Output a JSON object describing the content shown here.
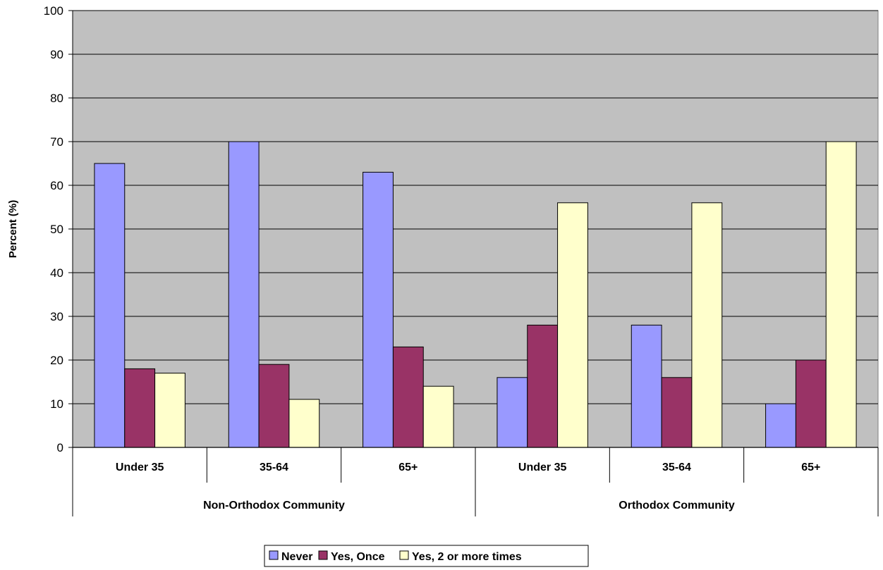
{
  "chart_data": {
    "type": "bar",
    "ylabel": "Percent (%)",
    "ylim": [
      0,
      100
    ],
    "yticks": [
      0,
      10,
      20,
      30,
      40,
      50,
      60,
      70,
      80,
      90,
      100
    ],
    "grid": true,
    "legend_placement": "bottom",
    "groups": [
      {
        "label": "Non-Orthodox Community",
        "categories": [
          "Under 35",
          "35-64",
          "65+"
        ]
      },
      {
        "label": "Orthodox Community",
        "categories": [
          "Under 35",
          "35-64",
          "65+"
        ]
      }
    ],
    "series": [
      {
        "name": "Never",
        "color": "#9999FF",
        "values": [
          65,
          70,
          63,
          16,
          28,
          10
        ]
      },
      {
        "name": "Yes, Once",
        "color": "#993366",
        "values": [
          18,
          19,
          23,
          28,
          16,
          20
        ]
      },
      {
        "name": "Yes, 2 or more times",
        "color": "#FFFFCC",
        "values": [
          17,
          11,
          14,
          56,
          56,
          70
        ]
      }
    ],
    "plot_background": "#C0C0C0"
  }
}
